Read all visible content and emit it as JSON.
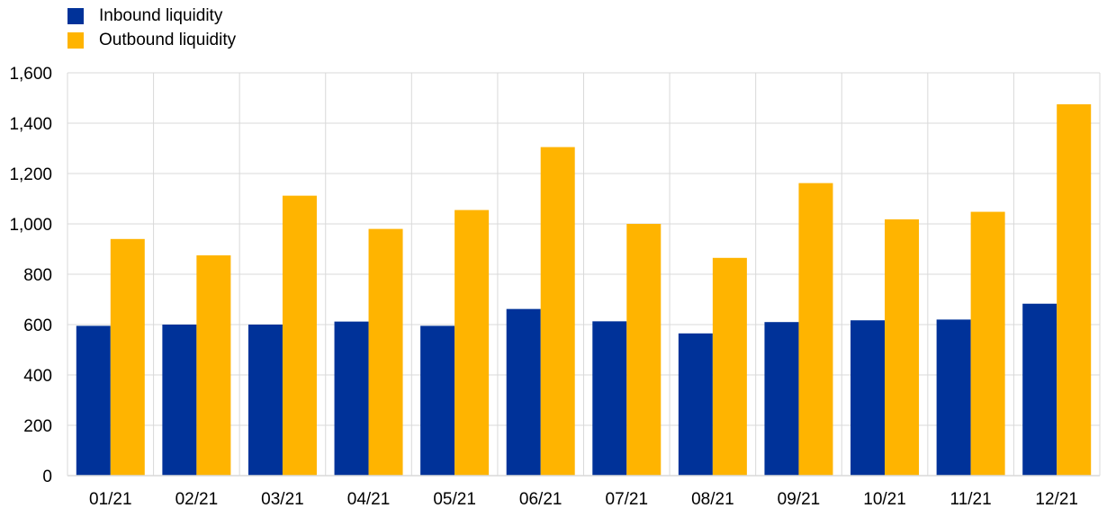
{
  "chart_data": {
    "type": "bar",
    "title": "",
    "xlabel": "",
    "ylabel": "",
    "categories": [
      "01/21",
      "02/21",
      "03/21",
      "04/21",
      "05/21",
      "06/21",
      "07/21",
      "08/21",
      "09/21",
      "10/21",
      "11/21",
      "12/21"
    ],
    "series": [
      {
        "name": "Inbound liquidity",
        "color": "#003299",
        "values": [
          595,
          600,
          600,
          612,
          595,
          662,
          613,
          565,
          610,
          617,
          620,
          683
        ]
      },
      {
        "name": "Outbound liquidity",
        "color": "#FFB400",
        "values": [
          940,
          875,
          1112,
          980,
          1055,
          1305,
          1000,
          865,
          1162,
          1018,
          1048,
          1475
        ]
      }
    ],
    "ylim": [
      0,
      1600
    ],
    "yticks": [
      0,
      200,
      400,
      600,
      800,
      1000,
      1200,
      1400,
      1600
    ],
    "ytick_labels": [
      "0",
      "200",
      "400",
      "600",
      "800",
      "1,000",
      "1,200",
      "1,400",
      "1,600"
    ],
    "grid": true,
    "legend_position": "top-left"
  }
}
